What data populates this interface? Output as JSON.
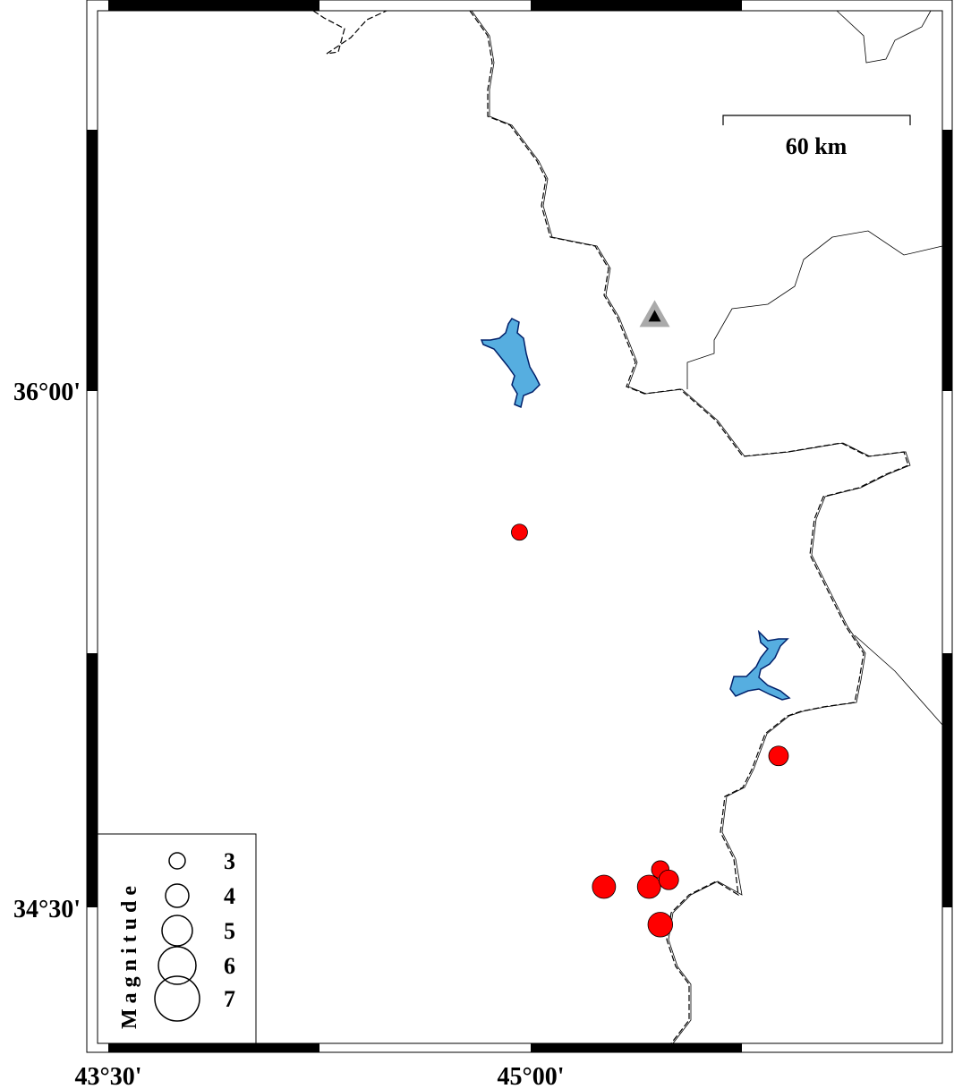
{
  "map": {
    "axes": {
      "x_ticks": [
        {
          "label": "43°30'",
          "lon": 43.5
        },
        {
          "label": "45°00'",
          "lon": 45.0
        }
      ],
      "y_ticks": [
        {
          "label": "36°00'",
          "lat": 36.0
        },
        {
          "label": "34°30'",
          "lat": 34.5
        }
      ]
    },
    "scale_bar": {
      "label": "60 km"
    },
    "legend": {
      "title": "Magnitude",
      "entries": [
        {
          "label": "3",
          "mag": 3
        },
        {
          "label": "4",
          "mag": 4
        },
        {
          "label": "5",
          "mag": 5
        },
        {
          "label": "6",
          "mag": 6
        },
        {
          "label": "7",
          "mag": 7
        }
      ]
    },
    "colors": {
      "event_fill": "#ff0000",
      "lake_fill": "#56aee0",
      "station_outer": "#aaaaaa",
      "station_inner": "#000000"
    },
    "events": [
      {
        "lon": 44.96,
        "lat": 35.59,
        "mag": 3.0
      },
      {
        "lon": 45.88,
        "lat": 34.94,
        "mag": 3.5
      },
      {
        "lon": 45.26,
        "lat": 34.56,
        "mag": 4.0
      },
      {
        "lon": 45.46,
        "lat": 34.61,
        "mag": 3.2
      },
      {
        "lon": 45.42,
        "lat": 34.56,
        "mag": 4.0
      },
      {
        "lon": 45.49,
        "lat": 34.58,
        "mag": 3.5
      },
      {
        "lon": 45.46,
        "lat": 34.45,
        "mag": 4.2
      }
    ],
    "station": {
      "lon": 45.44,
      "lat": 36.22,
      "icon": "triangle-icon"
    }
  }
}
